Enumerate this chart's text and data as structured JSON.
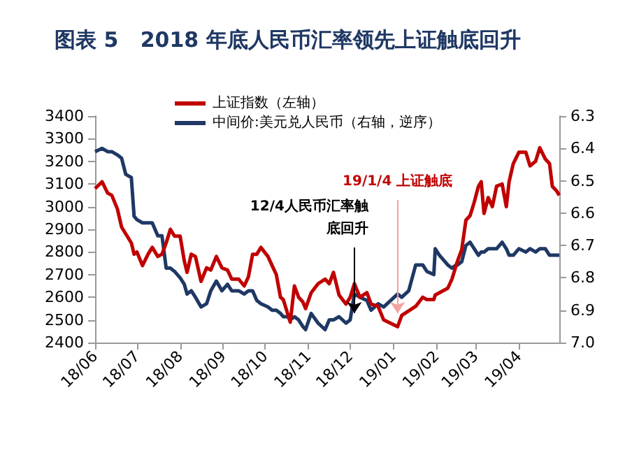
{
  "chart_data": {
    "type": "line",
    "title": "图表 5   2018 年底人民币汇率领先上证触底回升",
    "x": [
      "2018-06-01",
      "2018-06-06",
      "2018-06-10",
      "2018-06-13",
      "2018-06-17",
      "2018-06-20",
      "2018-06-23",
      "2018-06-27",
      "2018-06-29",
      "2018-07-01",
      "2018-07-05",
      "2018-07-09",
      "2018-07-12",
      "2018-07-16",
      "2018-07-19",
      "2018-07-22",
      "2018-07-25",
      "2018-07-28",
      "2018-08-01",
      "2018-08-04",
      "2018-08-06",
      "2018-08-09",
      "2018-08-12",
      "2018-08-16",
      "2018-08-20",
      "2018-08-23",
      "2018-08-27",
      "2018-08-31",
      "2018-09-04",
      "2018-09-07",
      "2018-09-12",
      "2018-09-16",
      "2018-09-19",
      "2018-09-22",
      "2018-09-25",
      "2018-09-28",
      "2018-10-03",
      "2018-10-06",
      "2018-10-09",
      "2018-10-12",
      "2018-10-14",
      "2018-10-17",
      "2018-10-19",
      "2018-10-22",
      "2018-10-25",
      "2018-10-28",
      "2018-10-30",
      "2018-11-03",
      "2018-11-08",
      "2018-11-13",
      "2018-11-16",
      "2018-11-19",
      "2018-11-23",
      "2018-11-28",
      "2018-12-01",
      "2018-12-04",
      "2018-12-08",
      "2018-12-13",
      "2018-12-16",
      "2018-12-21",
      "2018-12-25",
      "2019-01-04",
      "2019-01-07",
      "2019-01-12",
      "2019-01-17",
      "2019-01-22",
      "2019-01-25",
      "2019-01-30",
      "2019-01-31",
      "2019-02-03",
      "2019-02-09",
      "2019-02-12",
      "2019-02-15",
      "2019-02-16",
      "2019-02-19",
      "2019-02-22",
      "2019-02-25",
      "2019-02-28",
      "2019-03-03",
      "2019-03-05",
      "2019-03-07",
      "2019-03-10",
      "2019-03-13",
      "2019-03-16",
      "2019-03-20",
      "2019-03-23",
      "2019-03-25",
      "2019-03-28",
      "2019-04-01",
      "2019-04-06",
      "2019-04-09",
      "2019-04-13",
      "2019-04-16",
      "2019-04-20",
      "2019-04-23",
      "2019-04-25",
      "2019-04-28",
      "2019-04-30"
    ],
    "series": [
      {
        "name": "上证指数（左轴）",
        "color": "#c00000",
        "values": [
          3080,
          3110,
          3060,
          3050,
          2990,
          2910,
          2880,
          2840,
          2790,
          2800,
          2740,
          2790,
          2820,
          2780,
          2790,
          2840,
          2900,
          2870,
          2870,
          2760,
          2710,
          2790,
          2780,
          2670,
          2730,
          2720,
          2780,
          2730,
          2720,
          2680,
          2680,
          2650,
          2690,
          2790,
          2790,
          2820,
          2780,
          2740,
          2700,
          2600,
          2590,
          2530,
          2490,
          2650,
          2600,
          2580,
          2550,
          2620,
          2660,
          2680,
          2660,
          2710,
          2610,
          2570,
          2600,
          2660,
          2600,
          2620,
          2570,
          2560,
          2500,
          2470,
          2520,
          2540,
          2560,
          2600,
          2590,
          2590,
          2610,
          2620,
          2640,
          2680,
          2740,
          2760,
          2810,
          2940,
          2960,
          3020,
          3090,
          3110,
          2970,
          3040,
          3000,
          3090,
          3100,
          3000,
          3110,
          3190,
          3240,
          3240,
          3180,
          3200,
          3260,
          3210,
          3190,
          3090,
          3070,
          3050
        ]
      },
      {
        "name": "中间价:美元兑人民币（右轴，逆序）",
        "color": "#1f3864",
        "axis": "y2",
        "values": [
          6.41,
          6.4,
          6.41,
          6.41,
          6.42,
          6.43,
          6.48,
          6.49,
          6.61,
          6.62,
          6.63,
          6.63,
          6.63,
          6.67,
          6.67,
          6.77,
          6.77,
          6.78,
          6.8,
          6.82,
          6.85,
          6.84,
          6.86,
          6.89,
          6.88,
          6.84,
          6.81,
          6.84,
          6.82,
          6.84,
          6.84,
          6.85,
          6.84,
          6.84,
          6.87,
          6.88,
          6.89,
          6.9,
          6.9,
          6.91,
          6.92,
          6.92,
          6.93,
          6.92,
          6.93,
          6.95,
          6.96,
          6.91,
          6.94,
          6.96,
          6.93,
          6.93,
          6.92,
          6.94,
          6.93,
          6.85,
          6.86,
          6.87,
          6.9,
          6.88,
          6.89,
          6.85,
          6.86,
          6.84,
          6.76,
          6.76,
          6.78,
          6.79,
          6.71,
          6.73,
          6.76,
          6.77,
          6.76,
          6.76,
          6.75,
          6.7,
          6.69,
          6.71,
          6.73,
          6.72,
          6.72,
          6.71,
          6.71,
          6.71,
          6.69,
          6.71,
          6.73,
          6.73,
          6.71,
          6.72,
          6.71,
          6.72,
          6.71,
          6.71,
          6.73,
          6.73,
          6.73,
          6.73
        ]
      }
    ],
    "xlim": [
      "2018-06-01",
      "2019-04-30"
    ],
    "xticks": [
      {
        "value": "2018-06-01",
        "label": "18/06"
      },
      {
        "value": "2018-07-01",
        "label": "18/07"
      },
      {
        "value": "2018-08-01",
        "label": "18/08"
      },
      {
        "value": "2018-09-01",
        "label": "18/09"
      },
      {
        "value": "2018-10-01",
        "label": "18/10"
      },
      {
        "value": "2018-11-01",
        "label": "18/11"
      },
      {
        "value": "2018-12-01",
        "label": "18/12"
      },
      {
        "value": "2019-01-01",
        "label": "19/01"
      },
      {
        "value": "2019-02-01",
        "label": "19/02"
      },
      {
        "value": "2019-03-01",
        "label": "19/03"
      },
      {
        "value": "2019-04-01",
        "label": "19/04"
      }
    ],
    "ylim": [
      2400,
      3400
    ],
    "yticks": [
      2400,
      2500,
      2600,
      2700,
      2800,
      2900,
      3000,
      3100,
      3200,
      3300,
      3400
    ],
    "y2lim": [
      7.0,
      6.3
    ],
    "y2ticks": [
      {
        "value": 7,
        "label": "7.0"
      },
      6.9,
      6.8,
      6.7,
      6.6,
      6.5,
      6.4,
      6.3
    ],
    "annotations": [
      {
        "text": "12/4人民币汇率触底回升",
        "x": "2018-12-04",
        "y": 2530
      },
      {
        "text": "19/1/4 上证触底",
        "x": "2019-01-04",
        "y": 2530
      }
    ],
    "legend": "top"
  }
}
